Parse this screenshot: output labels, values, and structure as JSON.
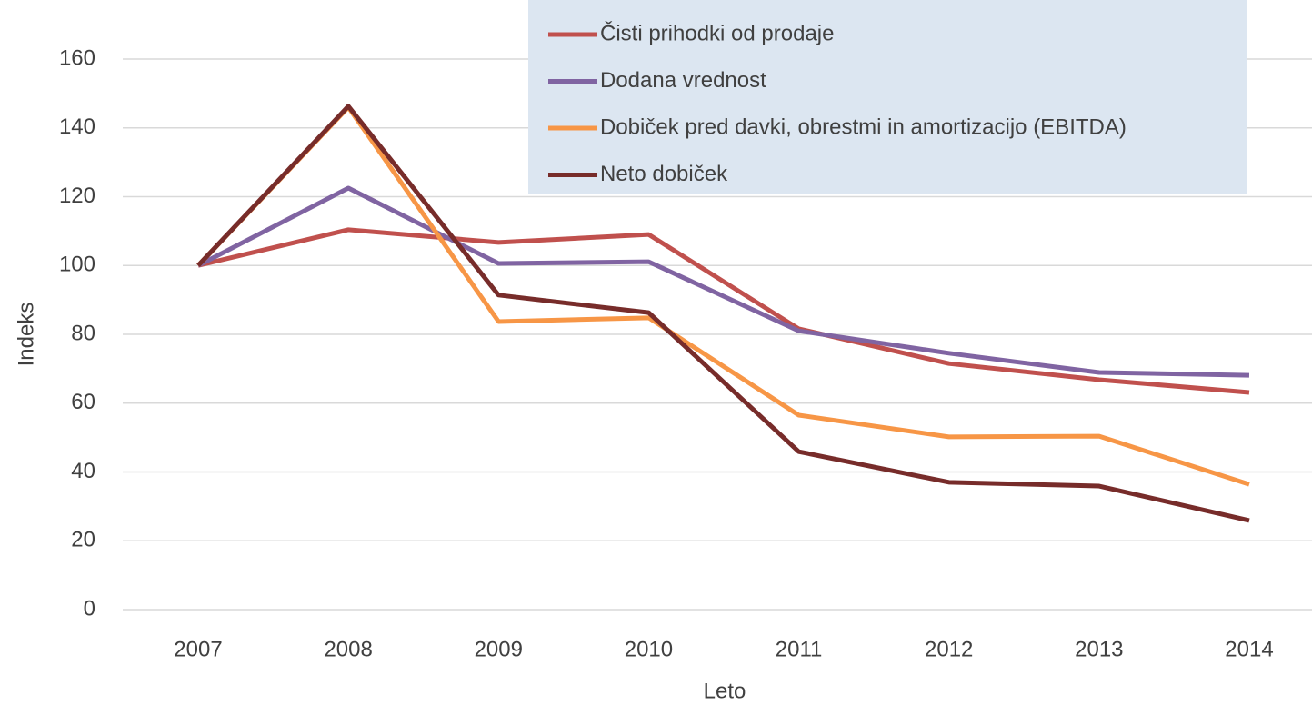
{
  "chart_data": {
    "type": "line",
    "x_label": "Leto",
    "y_label": "Indeks",
    "categories": [
      "2007",
      "2008",
      "2009",
      "2010",
      "2011",
      "2012",
      "2013",
      "2014"
    ],
    "series": [
      {
        "name": "Čisti prihodki od prodaje",
        "color": "#c0504d",
        "values": [
          100,
          110.4,
          106.7,
          109,
          81.6,
          71.5,
          66.8,
          63.1
        ]
      },
      {
        "name": "Dodana vrednost",
        "color": "#8064a2",
        "values": [
          100,
          122.5,
          100.6,
          101.1,
          81,
          74.5,
          68.9,
          68.1
        ]
      },
      {
        "name": "Dobiček pred davki, obrestmi in amortizacijo (EBITDA)",
        "color": "#f79646",
        "values": [
          100,
          146,
          83.7,
          84.8,
          56.5,
          50.2,
          50.4,
          36.4
        ]
      },
      {
        "name": "Neto dobiček",
        "color": "#772c2a",
        "values": [
          100,
          146.3,
          91.4,
          86.3,
          45.9,
          37,
          35.9,
          25.9
        ]
      }
    ],
    "ylim": [
      0,
      160
    ],
    "yticks": [
      0,
      20,
      40,
      60,
      80,
      100,
      120,
      140,
      160
    ],
    "grid": true,
    "legend": "top"
  }
}
